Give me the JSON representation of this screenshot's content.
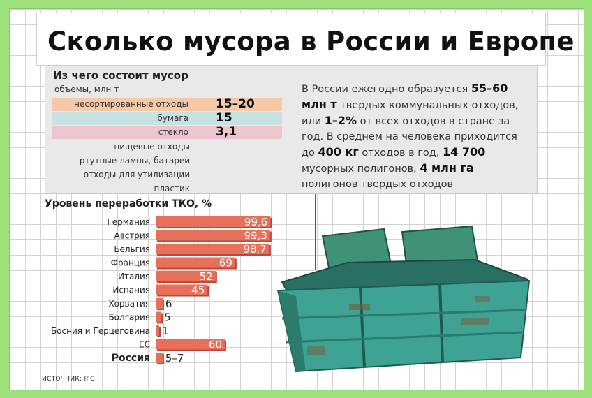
{
  "title": "Сколько мусора в России и Европе",
  "composition": {
    "title": "Из чего состоит мусор",
    "subtitle": "объемы, млн т",
    "rows": [
      {
        "label": "несортированные отходы",
        "value": "15–20",
        "color": "#f6c9a8"
      },
      {
        "label": "бумага",
        "value": "15",
        "color": "#c7e2e2"
      },
      {
        "label": "стекло",
        "value": "3,1",
        "color": "#ecc6cc"
      }
    ],
    "others": [
      "пищевые отходы",
      "ртутные лампы, батареи",
      "отходы для утилизации",
      "пластик"
    ]
  },
  "russia_facts": {
    "p1": "В России ежегодно образуется",
    "amount": "55–60 млн т",
    "p2": "твердых коммунальных отходов, или",
    "share": "1–2%",
    "p3": "от всех отходов в стране за год. В среднем на человека приходится до",
    "per_person": "400 кг",
    "p4": "отходов в год,",
    "landfills": "14 700",
    "p5": "мусорных полигонов,",
    "area": "4 млн га",
    "p6": "полигонов твердых отходов"
  },
  "recycling_title": "Уровень переработки ТКО, %",
  "source": "ИСТОЧНИК: IFC",
  "colors": {
    "bar": "#e8705a",
    "bar_dark": "#b94a39",
    "background": "#9be07a"
  },
  "chart_data": {
    "type": "bar",
    "orientation": "horizontal",
    "title": "Уровень переработки ТКО, %",
    "categories": [
      "Германия",
      "Австрия",
      "Бельгия",
      "Франция",
      "Италия",
      "Испания",
      "Хорватия",
      "Болгария",
      "Босния и Герцеговина",
      "ЕС",
      "Россия"
    ],
    "values": [
      99.6,
      99.3,
      98.7,
      69,
      52,
      45,
      6,
      5,
      1,
      60,
      6
    ],
    "value_labels": [
      "99,6",
      "99,3",
      "98,7",
      "69",
      "52",
      "45",
      "6",
      "5",
      "1",
      "60",
      "5–7"
    ],
    "xlim": [
      0,
      100
    ]
  }
}
